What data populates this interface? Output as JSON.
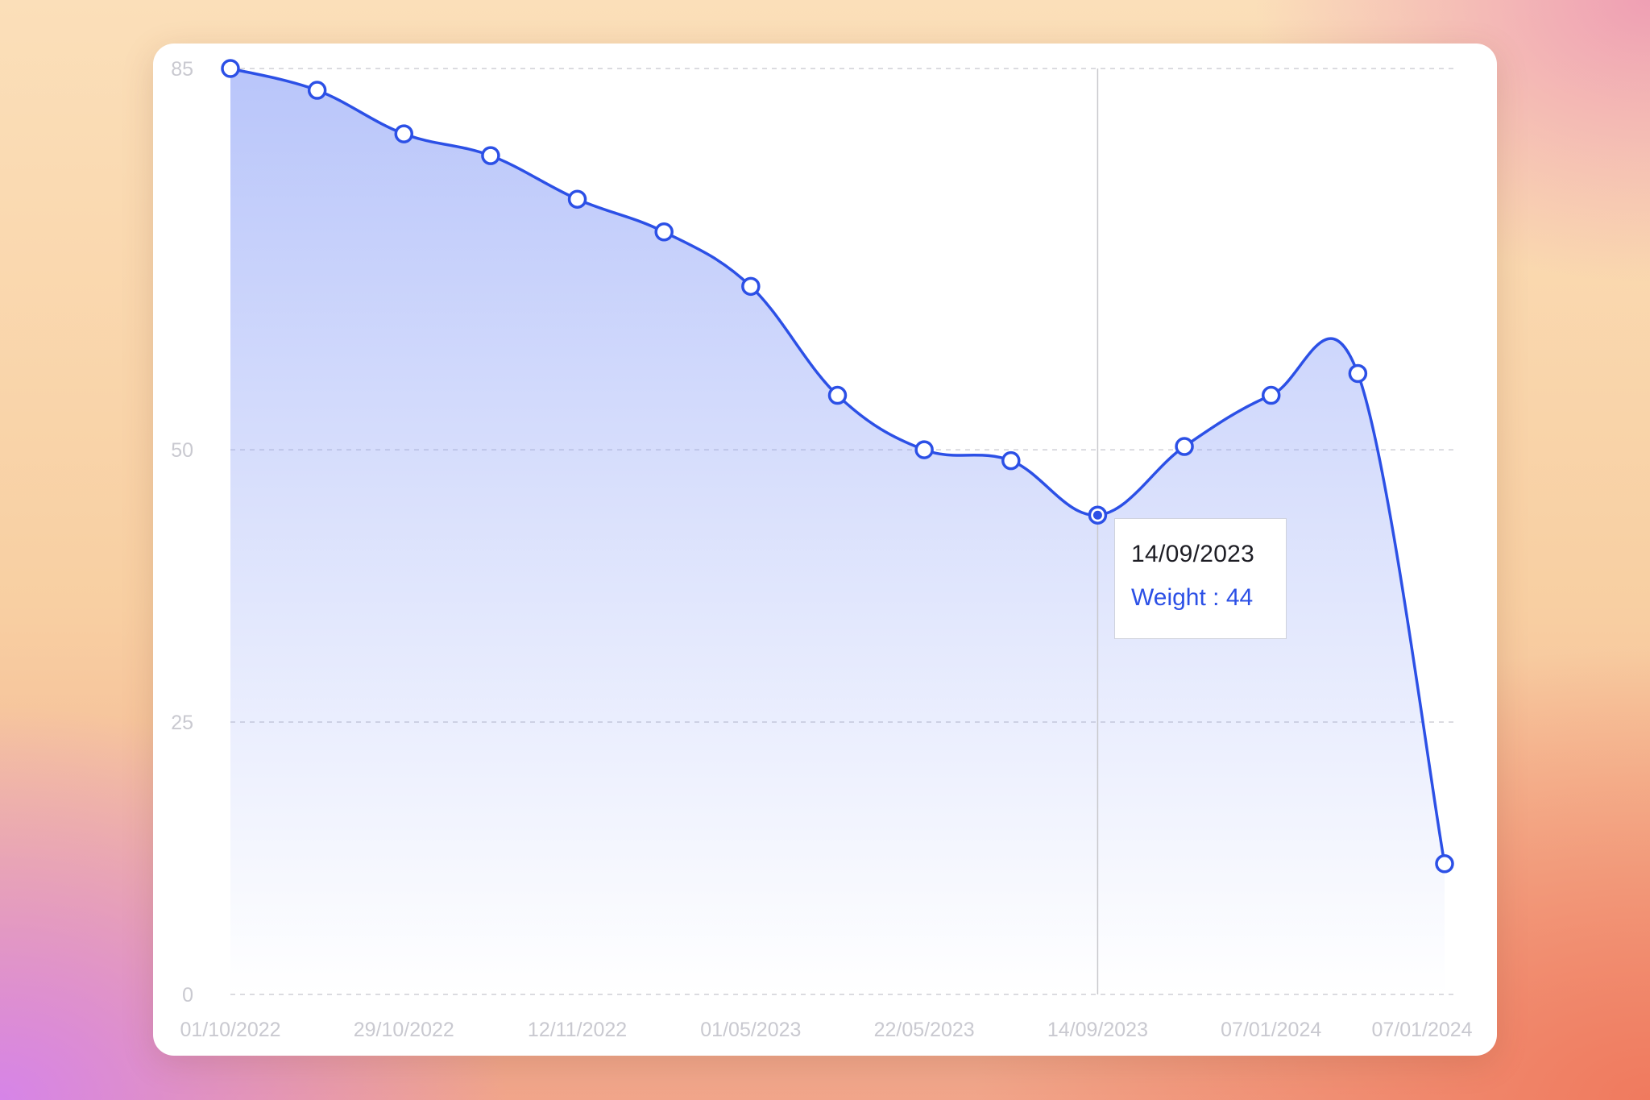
{
  "chart_data": {
    "type": "area",
    "categories": [
      "01/10/2022",
      "",
      "29/10/2022",
      "",
      "12/11/2022",
      "",
      "01/05/2023",
      "",
      "22/05/2023",
      "",
      "14/09/2023",
      "",
      "07/01/2024",
      "",
      "07/01/2024"
    ],
    "x_tick_labels": [
      "01/10/2022",
      "29/10/2022",
      "12/11/2022",
      "01/05/2023",
      "22/05/2023",
      "14/09/2023",
      "07/01/2024",
      "07/01/2024"
    ],
    "series": [
      {
        "values": [
          85,
          83,
          79,
          77,
          73,
          70,
          65,
          55,
          50,
          49,
          44,
          50.3,
          55,
          57,
          12
        ]
      }
    ],
    "y_ticks": [
      85,
      50,
      25,
      0
    ],
    "ylim": [
      0,
      85
    ],
    "grid": true,
    "line_color": "#2c50e6",
    "fill_color": "#8ea2f7",
    "highlighted_index": 10,
    "tooltip": {
      "date": "14/09/2023",
      "label": "Weight : 44"
    }
  }
}
